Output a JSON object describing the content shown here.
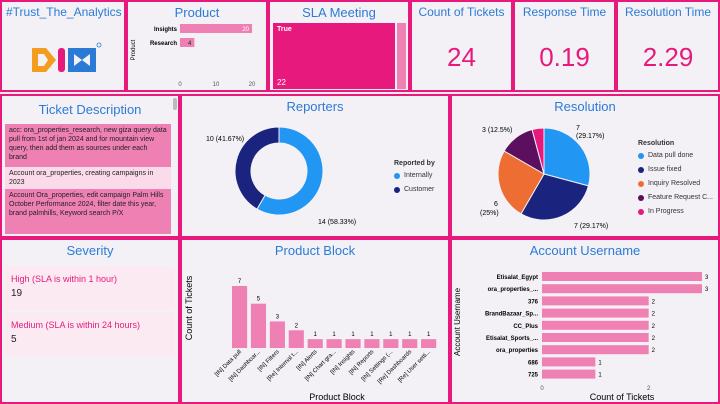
{
  "header": {
    "hashtag": "#Trust_The_Analytics"
  },
  "product": {
    "title": "Product",
    "axis_label": "Product",
    "chart_data": {
      "type": "bar",
      "categories": [
        "Insights",
        "Research"
      ],
      "values": [
        20,
        4
      ],
      "xlim": [
        0,
        20
      ],
      "ticks": [
        "0",
        "10",
        "20"
      ],
      "ylabel": "Product"
    }
  },
  "sla": {
    "title": "SLA Meeting",
    "label": "True",
    "value": "22"
  },
  "kpis": [
    {
      "title": "Count of Tickets",
      "value": "24"
    },
    {
      "title": "Response Time",
      "value": "0.19"
    },
    {
      "title": "Resolution Time",
      "value": "2.29"
    }
  ],
  "ticket_description": {
    "title": "Ticket Description",
    "rows": [
      "acc: ora_properties_research, new giza query data pull from 1st of jan 2024 and for mountain view query, then add them as sources under each brand",
      "Account ora_properties, creating campaigns in 2023",
      "Account Ora_properties, edit campaign Palm Hills October Performance 2024, filter date this year, brand palmhills, Keyword search P/X"
    ]
  },
  "reporters": {
    "title": "Reporters",
    "legend_title": "Reported by",
    "chart_data": {
      "type": "pie",
      "categories": [
        "Internally",
        "Customer"
      ],
      "values": [
        14,
        10
      ],
      "labels": [
        "14 (58.33%)",
        "10 (41.67%)"
      ]
    }
  },
  "resolution": {
    "title": "Resolution",
    "legend_title": "Resolution",
    "chart_data": {
      "type": "pie",
      "categories": [
        "Data pull done",
        "Issue fixed",
        "Inquiry Resolved",
        "Feature Request C...",
        "In Progress"
      ],
      "values": [
        7,
        7,
        6,
        3,
        1
      ],
      "labels": [
        "7 (29.17%)",
        "7 (29.17%)",
        "6 (25%)",
        "3 (12.5%)",
        ""
      ]
    }
  },
  "severity": {
    "title": "Severity",
    "items": [
      {
        "label": "High (SLA is within 1 hour)",
        "value": "19"
      },
      {
        "label": "Medium (SLA is within 24 hours)",
        "value": "5"
      }
    ]
  },
  "product_block": {
    "title": "Product Block",
    "chart_data": {
      "type": "bar",
      "categories": [
        "[IN] Data pull",
        "[IN] Dashboar...",
        "[IN] Filters",
        "[Re] Internal t...",
        "[IN] Alerts",
        "[IN] Chart gra...",
        "[IN] Insights",
        "[IN] Reports",
        "[IN] Settings (...",
        "[Re] Dashboards",
        "[Re] User setti..."
      ],
      "values": [
        7,
        5,
        3,
        2,
        1,
        1,
        1,
        1,
        1,
        1,
        1
      ],
      "xlabel": "Product Block",
      "ylabel": "Count of Tickets"
    }
  },
  "account_username": {
    "title": "Account Username",
    "chart_data": {
      "type": "bar",
      "categories": [
        "Etisalat_Egypt",
        "ora_properties_...",
        "376",
        "BrandBazaar_Sp...",
        "CC_Plus",
        "Etisalat_Sports_...",
        "ora_properties",
        "686",
        "725"
      ],
      "values": [
        3,
        3,
        2,
        2,
        2,
        2,
        2,
        1,
        1
      ],
      "xlim": [
        0,
        3
      ],
      "ticks": [
        "0",
        "2"
      ],
      "xlabel": "Count of Tickets",
      "ylabel": "Account Username"
    }
  },
  "colors": {
    "accent": "#e8197d",
    "title_blue": "#2b7bd6",
    "bar_pink": "#ee80b4",
    "internally": "#2196f3",
    "customer": "#1a237e",
    "data_pull": "#2196f3",
    "issue_fixed": "#1a237e",
    "inquiry": "#ed6d32",
    "feature": "#5b0f5e",
    "in_progress": "#e8197d"
  }
}
